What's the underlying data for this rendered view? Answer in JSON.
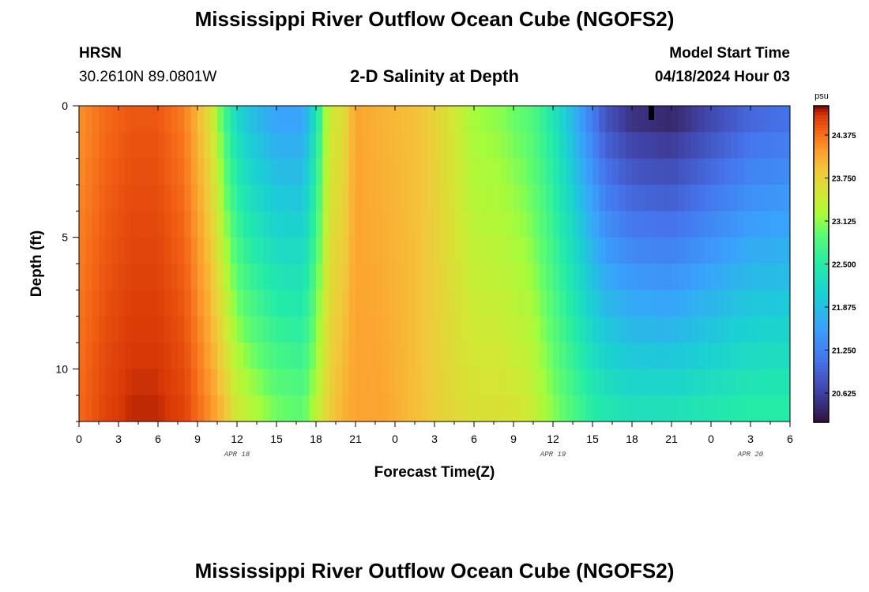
{
  "header": {
    "title": "Mississippi River Outflow Ocean Cube (NGOFS2)",
    "station_name": "HRSN",
    "station_coords": "30.2610N  89.0801W",
    "panel_title": "2-D Salinity at Depth",
    "model_start_label": "Model Start Time",
    "model_start_value": "04/18/2024 Hour 03"
  },
  "footer": {
    "title": "Mississippi River Outflow Ocean Cube (NGOFS2)"
  },
  "chart_data": {
    "type": "heatmap",
    "title": "2-D Salinity at Depth",
    "xlabel": "Forecast Time(Z)",
    "ylabel": "Depth (ft)",
    "x_tick_labels": [
      "0",
      "3",
      "6",
      "9",
      "12",
      "15",
      "18",
      "21",
      "0",
      "3",
      "6",
      "9",
      "12",
      "15",
      "18",
      "21",
      "0",
      "3",
      "6"
    ],
    "x_range_hours": [
      0,
      54
    ],
    "date_labels": [
      {
        "label": "APR 18",
        "hour": 12
      },
      {
        "label": "APR 19",
        "hour": 36
      },
      {
        "label": "APR 20",
        "hour": 51
      }
    ],
    "y_tick_labels": [
      "0",
      "5",
      "10"
    ],
    "y_tick_values": [
      0,
      5,
      10
    ],
    "y_range_ft": [
      0,
      12
    ],
    "y_inverted": true,
    "colorbar": {
      "unit": "psu",
      "ticks": [
        "24.375",
        "23.750",
        "23.125",
        "22.500",
        "21.875",
        "21.250",
        "20.625"
      ],
      "tick_values": [
        24.375,
        23.75,
        23.125,
        22.5,
        21.875,
        21.25,
        20.625
      ],
      "range": [
        20.2,
        24.8
      ],
      "colormap": "turbo"
    },
    "depth_levels_ft": [
      0.5,
      1.5,
      2.5,
      3.5,
      4.5,
      5.5,
      6.5,
      7.5,
      8.5,
      9.5,
      10.5,
      11.5
    ],
    "time_profile_hours": [
      0,
      2,
      4,
      6,
      8,
      9,
      10,
      11,
      12,
      13,
      15,
      17,
      18,
      19,
      20,
      21,
      23,
      26,
      28,
      30,
      32,
      34,
      35,
      36,
      37,
      38,
      39,
      40,
      42,
      45,
      48,
      51,
      54
    ],
    "salinity_surface_psu": [
      24.2,
      24.4,
      24.5,
      24.5,
      24.3,
      24.0,
      23.6,
      22.8,
      22.2,
      21.9,
      21.6,
      21.6,
      22.3,
      23.5,
      23.6,
      24.1,
      24.0,
      23.9,
      23.6,
      23.2,
      23.1,
      22.9,
      22.7,
      22.4,
      22.0,
      21.6,
      21.2,
      20.8,
      20.5,
      20.4,
      20.7,
      21.0,
      21.1
    ],
    "salinity_bottom_psu": [
      24.4,
      24.6,
      24.7,
      24.7,
      24.6,
      24.4,
      24.2,
      23.9,
      23.5,
      23.3,
      23.0,
      22.9,
      23.3,
      23.8,
      24.0,
      24.1,
      24.1,
      23.9,
      23.7,
      23.6,
      23.6,
      23.5,
      23.3,
      23.1,
      22.9,
      22.7,
      22.5,
      22.4,
      22.3,
      22.3,
      22.4,
      22.5,
      22.5
    ]
  }
}
